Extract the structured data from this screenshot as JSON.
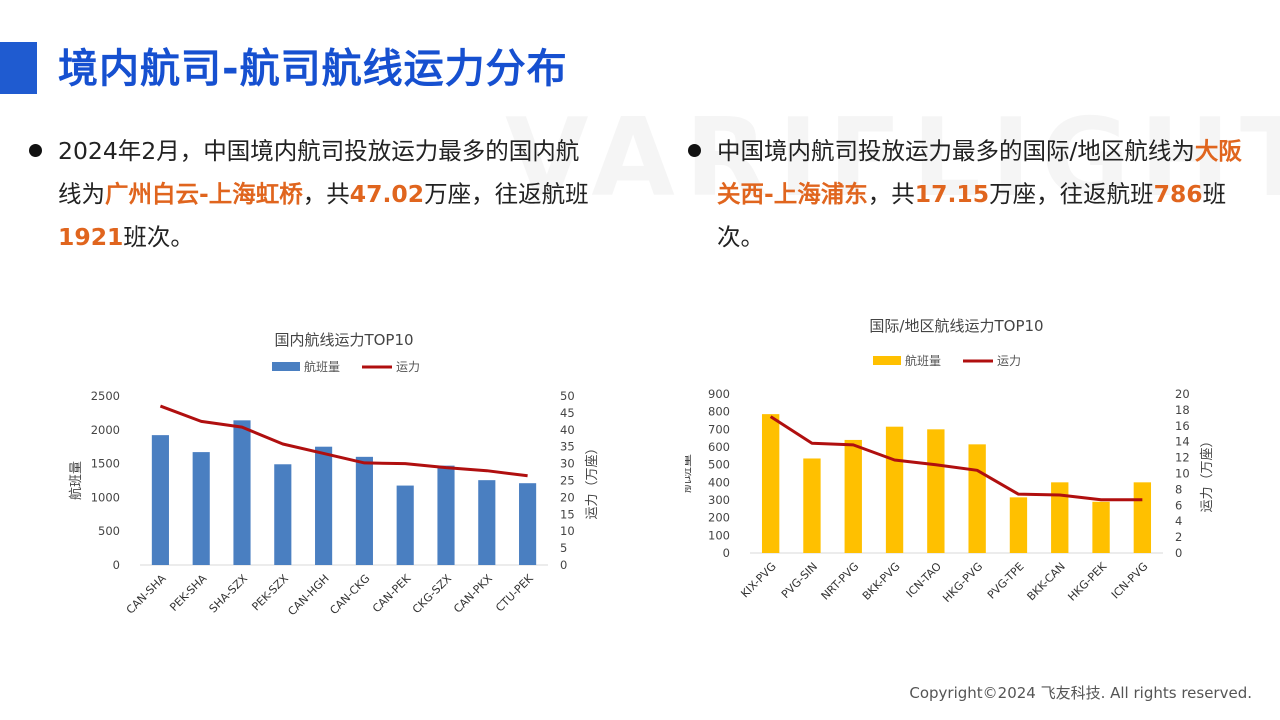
{
  "header": {
    "title": "境内航司-航司航线运力分布",
    "watermark": "VARIFLIGHT"
  },
  "bullets": {
    "left": {
      "p1": "2024年2月，中国境内航司投放运力最多的国内航线为",
      "route": "广州白云-上海虹桥",
      "p2": "，共",
      "capacity": "47.02",
      "p3": "万座，往返航班",
      "flights": "1921",
      "p4": "班次。"
    },
    "right": {
      "p1": "中国境内航司投放运力最多的国际/地区航线为",
      "route": "大阪关西-上海浦东",
      "p2": "，共",
      "capacity": "17.15",
      "p3": "万座，往返航班",
      "flights": "786",
      "p4": "班次。"
    }
  },
  "footer": {
    "copyright": "Copyright©2024 飞友科技. All rights reserved."
  },
  "colors": {
    "accent": "#1f5bd0",
    "title": "#1650d0",
    "highlight": "#e0651e",
    "domestic_bar": "#4a7fc1",
    "intl_bar": "#ffc000",
    "line": "#b00f0f"
  },
  "chart_data": [
    {
      "type": "bar",
      "title": "国内航线运力TOP10",
      "categories": [
        "CAN-SHA",
        "PEK-SHA",
        "SHA-SZX",
        "PEK-SZX",
        "CAN-HGH",
        "CAN-CKG",
        "CAN-PEK",
        "CKG-SZX",
        "CAN-PKX",
        "CTU-PEK"
      ],
      "series": [
        {
          "name": "航班量",
          "type": "bar",
          "axis": "left",
          "values": [
            1921,
            1670,
            2140,
            1490,
            1750,
            1600,
            1175,
            1470,
            1255,
            1210
          ]
        },
        {
          "name": "运力",
          "type": "line",
          "axis": "right",
          "values": [
            47.02,
            42.5,
            40.8,
            35.8,
            33.0,
            30.2,
            30.0,
            28.8,
            27.9,
            26.4
          ]
        }
      ],
      "ylabel": "航班量",
      "y2label": "运力（万座）",
      "ylim": [
        0,
        2500
      ],
      "yticks": [
        0,
        500,
        1000,
        1500,
        2000,
        2500
      ],
      "y2lim": [
        0,
        50
      ],
      "y2ticks": [
        0,
        5,
        10,
        15,
        20,
        25,
        30,
        35,
        40,
        45,
        50
      ],
      "legend": "top",
      "grid": false
    },
    {
      "type": "bar",
      "title": "国际/地区航线运力TOP10",
      "categories": [
        "KIX-PVG",
        "PVG-SIN",
        "NRT-PVG",
        "BKK-PVG",
        "ICN-TAO",
        "HKG-PVG",
        "PVG-TPE",
        "BKK-CAN",
        "HKG-PEK",
        "ICN-PVG"
      ],
      "series": [
        {
          "name": "航班量",
          "type": "bar",
          "axis": "left",
          "values": [
            786,
            535,
            640,
            715,
            700,
            615,
            315,
            400,
            290,
            400
          ]
        },
        {
          "name": "运力",
          "type": "line",
          "axis": "right",
          "values": [
            17.15,
            13.8,
            13.6,
            11.7,
            11.1,
            10.4,
            7.4,
            7.3,
            6.7,
            6.7
          ]
        }
      ],
      "ylabel": "航班量",
      "y2label": "运力（万座）",
      "ylim": [
        0,
        900
      ],
      "yticks": [
        0,
        100,
        200,
        300,
        400,
        500,
        600,
        700,
        800,
        900
      ],
      "y2lim": [
        0,
        20
      ],
      "y2ticks": [
        0,
        2,
        4,
        6,
        8,
        10,
        12,
        14,
        16,
        18,
        20
      ],
      "legend": "top",
      "grid": false
    }
  ]
}
